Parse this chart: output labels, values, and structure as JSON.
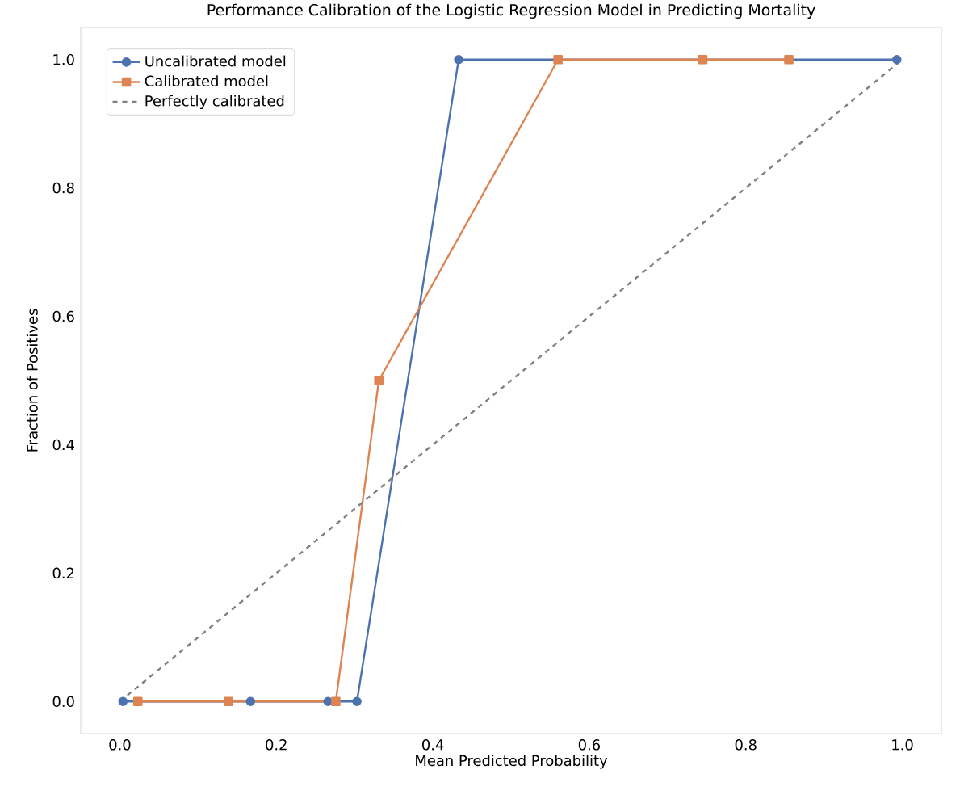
{
  "chart_data": {
    "type": "line",
    "title": "Performance Calibration of the Logistic Regression Model in Predicting Mortality",
    "xlabel": "Mean Predicted Probability",
    "ylabel": "Fraction of Positives",
    "xlim": [
      -0.05,
      1.05
    ],
    "ylim": [
      -0.05,
      1.05
    ],
    "xticks": [
      {
        "value": 0,
        "label": "0.0"
      },
      0.2,
      0.4,
      0.6,
      0.8,
      {
        "value": 1,
        "label": "1.0"
      }
    ],
    "yticks": [
      {
        "value": 0,
        "label": "0.0"
      },
      0.2,
      0.4,
      0.6,
      0.8,
      {
        "value": 1,
        "label": "1.0"
      }
    ],
    "grid": false,
    "legend": "top left",
    "series": [
      {
        "name": "Uncalibrated model",
        "color": "#4c72b0",
        "marker": "circle",
        "line_style": "solid",
        "x": [
          0.004,
          0.167,
          0.266,
          0.303,
          0.433,
          0.993
        ],
        "values": [
          0,
          0,
          0,
          0,
          1,
          1
        ]
      },
      {
        "name": "Calibrated model",
        "color": "#dd8452",
        "marker": "square",
        "line_style": "solid",
        "x": [
          0.023,
          0.139,
          0.276,
          0.331,
          0.56,
          0.745,
          0.855
        ],
        "values": [
          0,
          0,
          0,
          0.5,
          1,
          1,
          1
        ]
      },
      {
        "name": "Perfectly calibrated",
        "color": "#808080",
        "marker": "none",
        "line_style": "dashed",
        "x": [
          0,
          1
        ],
        "values": [
          0,
          1
        ]
      }
    ]
  }
}
